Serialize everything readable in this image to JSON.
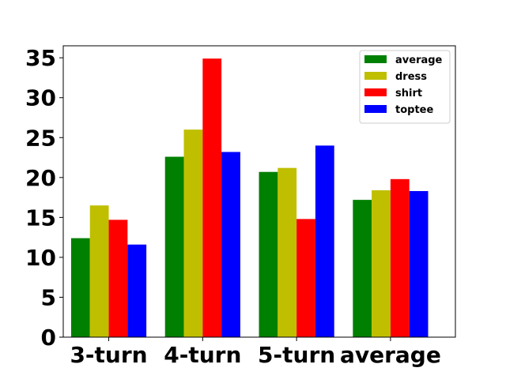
{
  "chart_data": {
    "type": "bar",
    "categories": [
      "3-turn",
      "4-turn",
      "5-turn",
      "average"
    ],
    "series": [
      {
        "name": "average",
        "color": "#008000",
        "values": [
          12.4,
          22.6,
          20.7,
          17.2
        ]
      },
      {
        "name": "dress",
        "color": "#bfbf00",
        "values": [
          16.5,
          26.0,
          21.2,
          18.4
        ]
      },
      {
        "name": "shirt",
        "color": "#ff0000",
        "values": [
          14.7,
          34.9,
          14.8,
          19.8
        ]
      },
      {
        "name": "toptee",
        "color": "#0000ff",
        "values": [
          11.6,
          23.2,
          24.0,
          18.3
        ]
      }
    ],
    "yticks": [
      "0",
      "5",
      "10",
      "15",
      "20",
      "25",
      "30",
      "35"
    ],
    "ylim": [
      0,
      36.5
    ],
    "legend_position": "top-right",
    "grid": false
  }
}
